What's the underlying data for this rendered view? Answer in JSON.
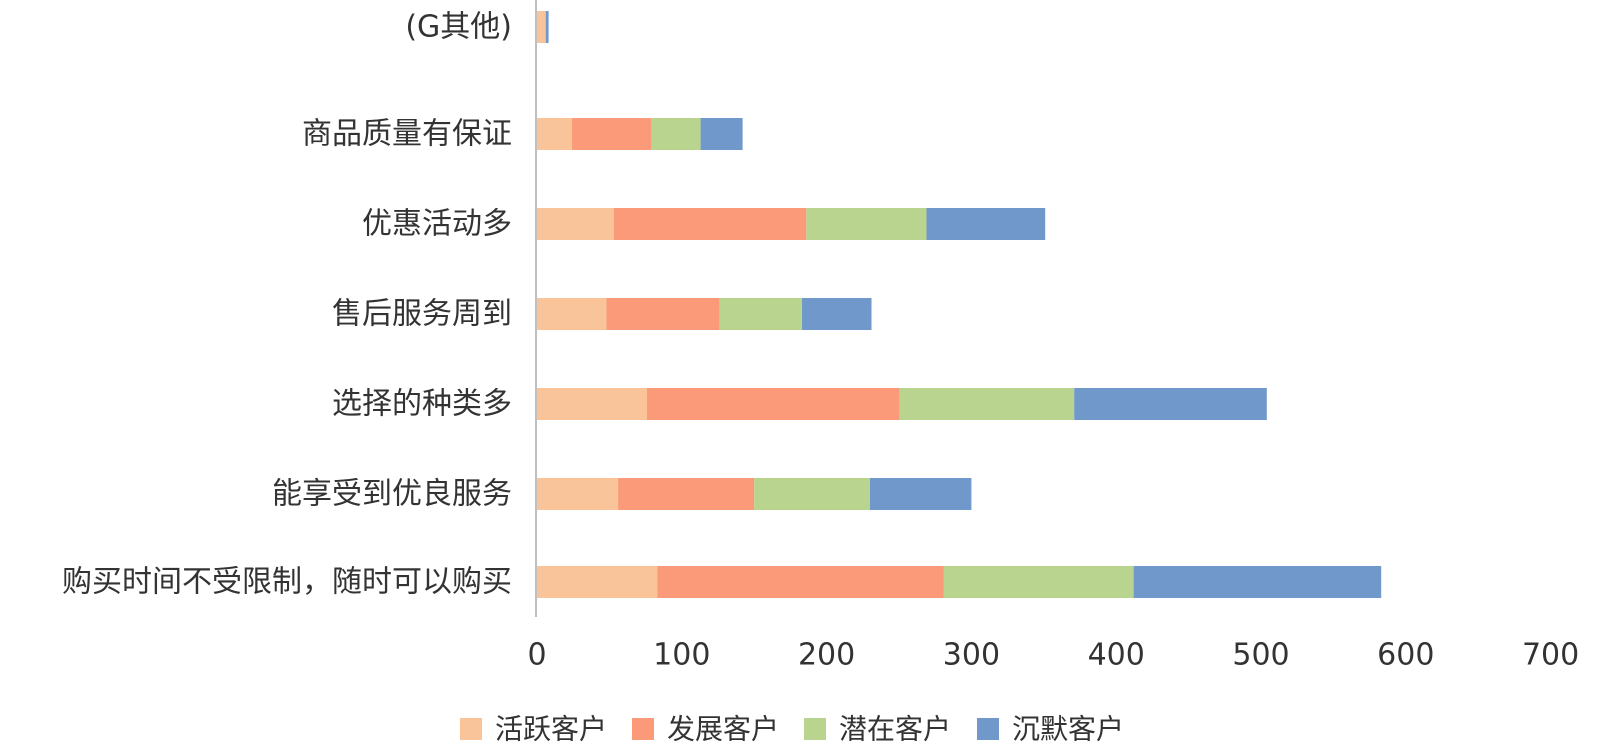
{
  "chart_data": {
    "type": "bar",
    "orientation": "horizontal",
    "stacked": true,
    "categories": [
      "购买时间不受限制，随时可以购买",
      "能享受到优良服务",
      "选择的种类多",
      "售后服务周到",
      "优惠活动多",
      "商品质量有保证",
      "(G其他)"
    ],
    "series": [
      {
        "name": "活跃客户",
        "color": "#F9C499",
        "values": [
          83,
          56,
          76,
          48,
          53,
          24,
          6
        ]
      },
      {
        "name": "发展客户",
        "color": "#FA9A78",
        "values": [
          198,
          94,
          174,
          78,
          133,
          55,
          0
        ]
      },
      {
        "name": "潜在客户",
        "color": "#B8D48F",
        "values": [
          131,
          80,
          121,
          57,
          83,
          34,
          0
        ]
      },
      {
        "name": "沉默客户",
        "color": "#7098CA",
        "values": [
          171,
          70,
          133,
          48,
          82,
          29,
          2
        ]
      }
    ],
    "xlim": [
      0,
      700
    ],
    "xticks": [
      0,
      100,
      200,
      300,
      400,
      500,
      600,
      700
    ],
    "legend_position": "bottom",
    "grid": false
  }
}
